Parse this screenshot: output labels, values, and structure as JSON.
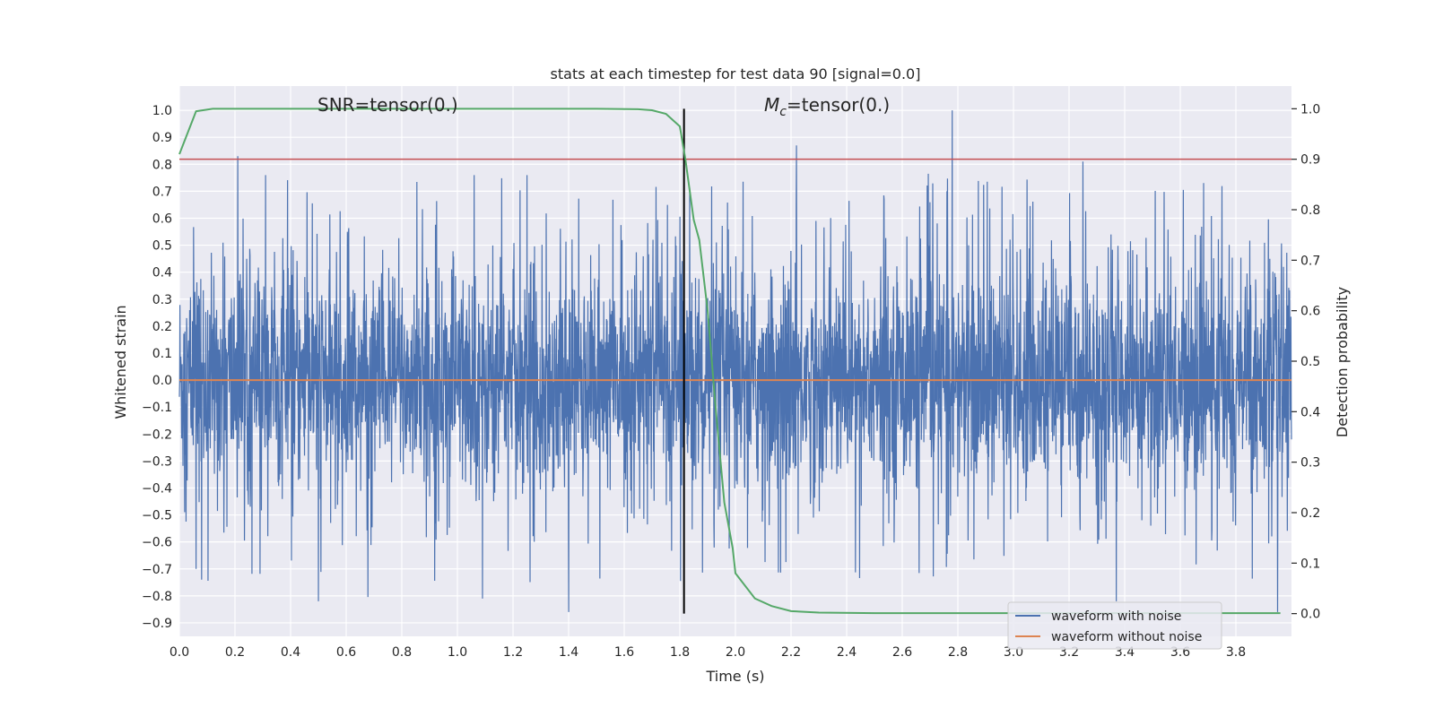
{
  "chart_data": {
    "type": "line",
    "title": "stats at each timestep for test data 90 [signal=0.0]",
    "xlabel": "Time (s)",
    "ylabel": "Whitened strain",
    "y2label": "Detection probability",
    "xlim": [
      0.0,
      4.0
    ],
    "ylim": [
      -0.95,
      1.09
    ],
    "y2lim": [
      -0.045,
      1.045
    ],
    "x_ticks": [
      0.0,
      0.2,
      0.4,
      0.6,
      0.8,
      1.0,
      1.2,
      1.4,
      1.6,
      1.8,
      2.0,
      2.2,
      2.4,
      2.6,
      2.8,
      3.0,
      3.2,
      3.4,
      3.6,
      3.8
    ],
    "y_ticks": [
      -0.9,
      -0.8,
      -0.7,
      -0.6,
      -0.5,
      -0.4,
      -0.3,
      -0.2,
      -0.1,
      0.0,
      0.1,
      0.2,
      0.3,
      0.4,
      0.5,
      0.6,
      0.7,
      0.8,
      0.9,
      1.0
    ],
    "y2_ticks": [
      0.0,
      0.1,
      0.2,
      0.3,
      0.4,
      0.5,
      0.6,
      0.7,
      0.8,
      0.9,
      1.0
    ],
    "grid": true,
    "legend_position": "lower-right",
    "annotations": [
      {
        "text": "SNR=tensor(0.)",
        "x": 0.5,
        "y": 1.0
      },
      {
        "text_italic": "M",
        "text_sub": "c",
        "text": "=tensor(0.)",
        "x": 2.1,
        "y": 1.0
      }
    ],
    "series": [
      {
        "name": "waveform with noise",
        "color": "#4c72b0",
        "axis": "left",
        "description_values": "dense noise between about -0.86 and 1.0",
        "min": -0.86,
        "max": 1.0,
        "spikes": [
          [
            0.21,
            0.83
          ],
          [
            0.06,
            -0.7
          ],
          [
            0.08,
            -0.74
          ],
          [
            0.5,
            -0.82
          ],
          [
            1.09,
            -0.81
          ],
          [
            1.4,
            -0.86
          ],
          [
            2.22,
            0.87
          ],
          [
            2.78,
            1.0
          ],
          [
            3.37,
            -0.82
          ],
          [
            3.95,
            -0.86
          ],
          [
            0.31,
            0.76
          ],
          [
            1.06,
            0.76
          ],
          [
            1.25,
            0.76
          ],
          [
            3.25,
            0.81
          ]
        ]
      },
      {
        "name": "waveform without noise",
        "color": "#dd8452",
        "axis": "left",
        "x": [
          0.0,
          4.0
        ],
        "y": [
          0.0,
          0.0
        ]
      },
      {
        "name": "detection probability",
        "color": "#55a868",
        "axis": "right",
        "x": [
          0.0,
          0.06,
          0.12,
          0.2,
          0.5,
          1.0,
          1.5,
          1.65,
          1.7,
          1.75,
          1.8,
          1.82,
          1.85,
          1.87,
          1.9,
          1.93,
          1.96,
          1.99,
          2.0,
          2.07,
          2.13,
          2.2,
          2.3,
          2.5,
          3.0,
          3.5,
          3.96
        ],
        "y": [
          0.91,
          0.995,
          1.0,
          1.0,
          1.0,
          1.0,
          1.0,
          0.999,
          0.997,
          0.99,
          0.965,
          0.9,
          0.78,
          0.74,
          0.6,
          0.4,
          0.22,
          0.13,
          0.08,
          0.03,
          0.015,
          0.005,
          0.002,
          0.001,
          0.001,
          0.001,
          0.001
        ]
      }
    ],
    "reference_lines": [
      {
        "type": "horizontal",
        "axis": "right",
        "value": 0.9,
        "color": "#c44e52"
      },
      {
        "type": "vertical",
        "axis": "x",
        "value": 1.815,
        "color": "#000000",
        "y2_range": [
          0.0,
          1.0
        ]
      }
    ],
    "legend": [
      {
        "label": "waveform with noise",
        "color": "#4c72b0"
      },
      {
        "label": "waveform without noise",
        "color": "#dd8452"
      }
    ]
  }
}
